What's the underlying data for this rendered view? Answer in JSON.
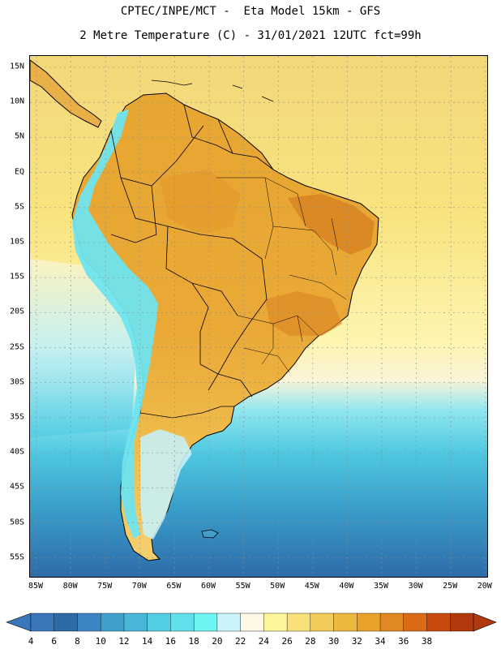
{
  "header": {
    "line1": "CPTEC/INPE/MCT -  Eta Model 15km - GFS",
    "line2": "2 Metre Temperature (C) - 31/01/2021 12UTC fct=99h"
  },
  "map": {
    "region": "South America",
    "lat_labels": [
      "15N",
      "10N",
      "5N",
      "EQ",
      "5S",
      "10S",
      "15S",
      "20S",
      "25S",
      "30S",
      "35S",
      "40S",
      "45S",
      "50S",
      "55S"
    ],
    "lon_labels": [
      "85W",
      "80W",
      "75W",
      "70W",
      "65W",
      "60W",
      "55W",
      "50W",
      "45W",
      "40W",
      "35W",
      "30W",
      "25W",
      "20W"
    ]
  },
  "colorbar": {
    "units": "C",
    "ticks": [
      "4",
      "6",
      "8",
      "10",
      "12",
      "14",
      "16",
      "18",
      "20",
      "22",
      "24",
      "26",
      "28",
      "30",
      "32",
      "34",
      "36",
      "38"
    ],
    "colors": [
      "#3a77b8",
      "#2d6aa8",
      "#3b86c2",
      "#3fa0cc",
      "#47b6d8",
      "#52cde2",
      "#5fe0ea",
      "#6ff4f4",
      "#c8f4fa",
      "#fdf8e4",
      "#fdf59a",
      "#f8e07a",
      "#f2cc5a",
      "#ecb83e",
      "#e8a22a",
      "#e08824",
      "#d86a18",
      "#c84a10",
      "#b03a0c"
    ],
    "under_color": "#3a77b8",
    "over_color": "#b03a0c"
  },
  "colors": {
    "ocean_north": "#f5dc82",
    "ocean_mid": "#fdf3a6",
    "ocean_south": "#4fc8e0",
    "ocean_far_south": "#2f6dac",
    "land_warm": "#e9a832",
    "land_hot": "#d88422",
    "andes_cold": "#6ae0ee",
    "coast_line": "#000000",
    "grid_line": "#8a8a8a"
  }
}
